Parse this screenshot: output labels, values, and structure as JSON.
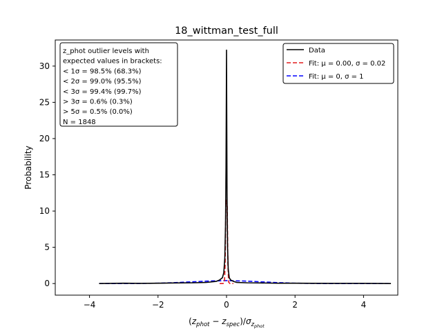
{
  "chart_data": {
    "type": "line",
    "title": "18_wittman_test_full",
    "xlabel": "(z_phot − z_spec)/σ_z_phot",
    "ylabel": "Probability",
    "xlim": [
      -5,
      5
    ],
    "ylim": [
      -1.6,
      33.6
    ],
    "xticks": [
      -4,
      -2,
      0,
      2,
      4
    ],
    "yticks": [
      0,
      5,
      10,
      15,
      20,
      25,
      30
    ],
    "grid": false,
    "legend_position": "top-right",
    "series": [
      {
        "name": "Data",
        "style": "solid",
        "color": "#000000",
        "x": [
          -3.72,
          -3.0,
          -2.5,
          -2.0,
          -1.5,
          -1.0,
          -0.6,
          -0.3,
          -0.2,
          -0.12,
          -0.08,
          -0.05,
          -0.03,
          -0.015,
          0.0,
          0.015,
          0.03,
          0.05,
          0.08,
          0.12,
          0.2,
          0.3,
          0.6,
          1.0,
          1.5,
          2.0,
          3.0,
          4.0,
          4.8
        ],
        "y": [
          0.0,
          0.05,
          0.02,
          0.05,
          0.08,
          0.1,
          0.15,
          0.3,
          0.5,
          0.8,
          1.5,
          3.5,
          8.0,
          16.0,
          32.2,
          12.0,
          5.0,
          2.0,
          0.8,
          0.5,
          0.3,
          0.15,
          0.1,
          0.08,
          0.05,
          0.05,
          0.02,
          0.02,
          0.0
        ]
      },
      {
        "name": "Fit: μ = 0.00, σ = 0.02",
        "style": "dashed",
        "color": "#e41a1c",
        "x": [
          -0.2,
          -0.1,
          -0.06,
          -0.04,
          -0.02,
          0.0,
          0.02,
          0.04,
          0.06,
          0.1,
          0.2
        ],
        "y": [
          0.0,
          0.0,
          0.2,
          2.7,
          10.9,
          11.5,
          10.9,
          2.7,
          0.2,
          0.0,
          0.0
        ]
      },
      {
        "name": "Fit: μ = 0, σ = 1",
        "style": "dashed",
        "color": "#0000ff",
        "x": [
          -3.72,
          -3.0,
          -2.5,
          -2.0,
          -1.5,
          -1.0,
          -0.5,
          0.0,
          0.5,
          1.0,
          1.5,
          2.0,
          2.5,
          3.0,
          4.0,
          4.8
        ],
        "y": [
          0.0,
          0.0,
          0.02,
          0.05,
          0.13,
          0.24,
          0.35,
          0.4,
          0.35,
          0.24,
          0.13,
          0.05,
          0.02,
          0.0,
          0.0,
          0.0
        ]
      }
    ],
    "annotation_lines": [
      "z_phot outlier levels with",
      " expected values in brackets:",
      "< 1σ = 98.5% (68.3%)",
      "< 2σ = 99.0% (95.5%)",
      "< 3σ = 99.4% (99.7%)",
      "> 3σ = 0.6% (0.3%)",
      "> 5σ = 0.5% (0.0%)",
      "N = 1848"
    ],
    "annotation_position": "top-left"
  }
}
